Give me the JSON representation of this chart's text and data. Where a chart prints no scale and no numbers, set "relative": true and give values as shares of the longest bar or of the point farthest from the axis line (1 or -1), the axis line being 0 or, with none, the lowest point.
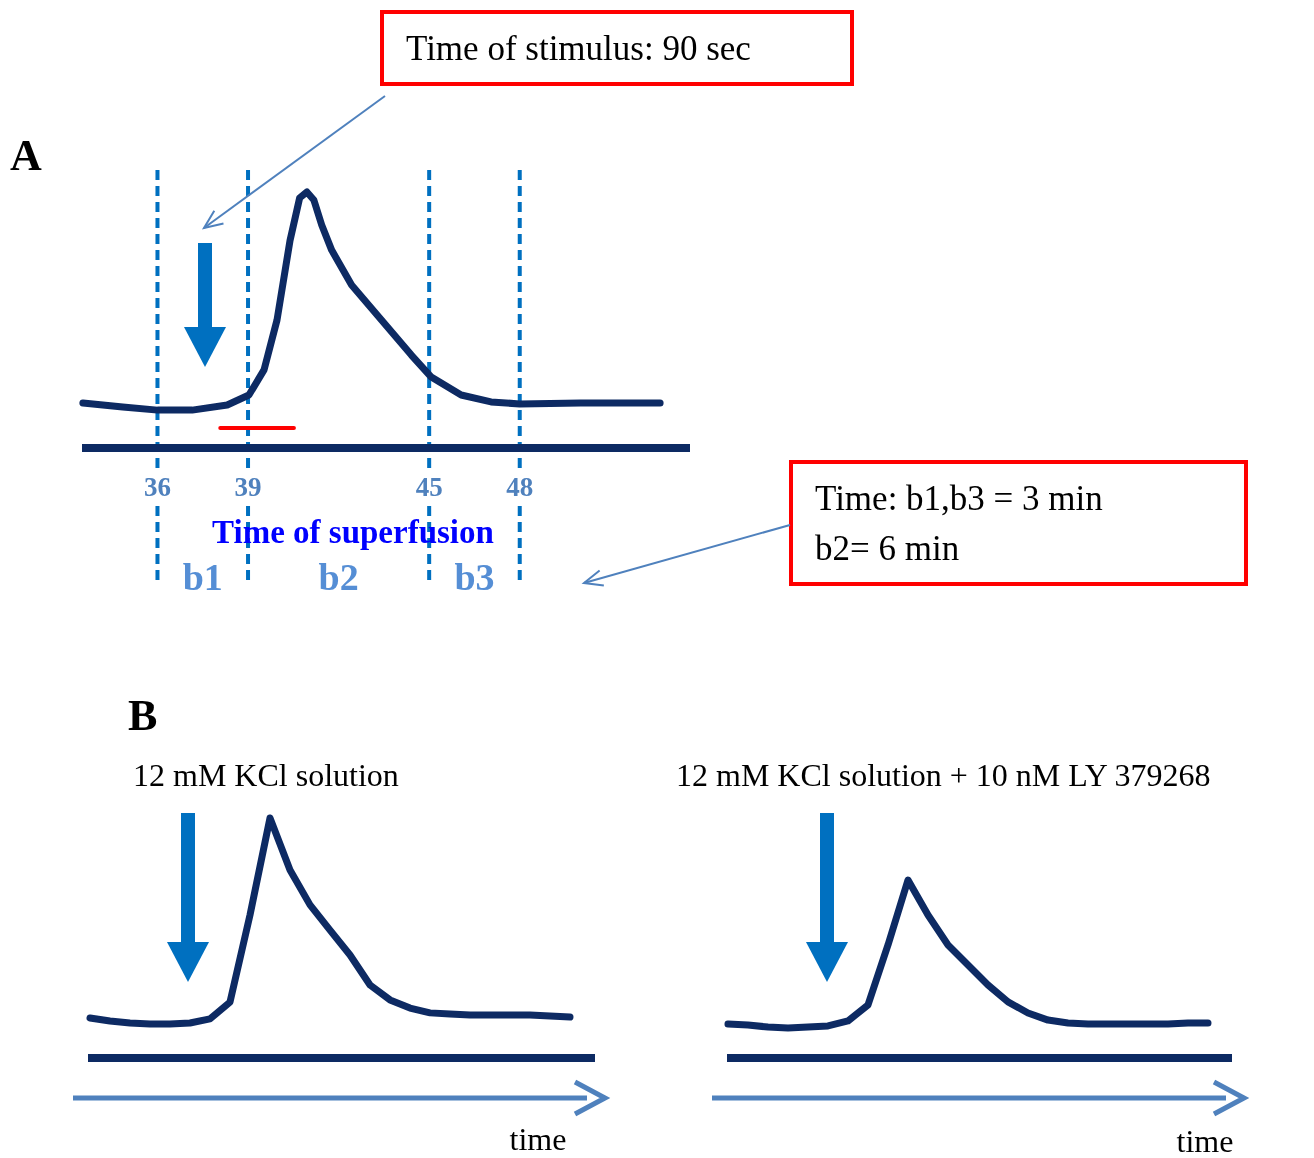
{
  "chart_data": [
    {
      "type": "line",
      "title": "A",
      "xlabel": "Time of superfusion",
      "relative": true,
      "tick_labels": "x",
      "xlim": [
        33.5,
        53.64
      ],
      "xticks": [
        36,
        39,
        45,
        48
      ],
      "x": [
        33.53,
        34.85,
        36,
        37.15,
        38.31,
        39.03,
        39.53,
        39.96,
        40.39,
        40.71,
        40.95,
        41.18,
        41.44,
        41.77,
        42.43,
        43.42,
        44.41,
        45.07,
        46.06,
        47.05,
        48.0,
        50.01,
        52.65
      ],
      "series": [
        {
          "color": "#0d2a63",
          "values": [
            0.176,
            0.16,
            0.148,
            0.148,
            0.168,
            0.207,
            0.305,
            0.5,
            0.81,
            0.977,
            1,
            0.969,
            0.871,
            0.773,
            0.637,
            0.5,
            0.363,
            0.277,
            0.207,
            0.18,
            0.172,
            0.176,
            0.176
          ]
        },
        {
          "color": "#ff0000",
          "x": [
            38.08,
            40.52
          ],
          "values": [
            0.078,
            0.078
          ]
        }
      ],
      "ref_lines": [
        {
          "axis": "x",
          "value": 36,
          "color": "#0070c0",
          "line_style": "dashed"
        },
        {
          "axis": "x",
          "value": 39,
          "color": "#0070c0",
          "line_style": "dashed"
        },
        {
          "axis": "x",
          "value": 45,
          "color": "#0070c0",
          "line_style": "dashed"
        },
        {
          "axis": "x",
          "value": 48,
          "color": "#0070c0",
          "line_style": "dashed"
        }
      ],
      "annotations": [
        "Time of stimulus: 90 sec",
        "Time: b1,b3 = 3 min\nb2= 6 min",
        "b1",
        "b2",
        "b3"
      ]
    },
    {
      "type": "line",
      "title": "B",
      "subtitle": "12 mM KCl solution",
      "xlabel": "time",
      "relative": true,
      "tick_labels": false,
      "categories": [
        null,
        null,
        null,
        null,
        null,
        null,
        null,
        null,
        null,
        null,
        null,
        null,
        null,
        null,
        null,
        null,
        null,
        null,
        null,
        null,
        null,
        null,
        null,
        null,
        null
      ],
      "series": [
        {
          "color": "#0d2a63",
          "values": [
            0.167,
            0.154,
            0.146,
            0.142,
            0.142,
            0.146,
            0.163,
            0.233,
            0.596,
            1,
            0.783,
            0.638,
            0.533,
            0.429,
            0.304,
            0.242,
            0.208,
            0.188,
            0.183,
            0.179,
            0.179,
            0.179,
            0.179,
            0.175,
            0.171
          ]
        }
      ]
    },
    {
      "type": "line",
      "subtitle": "12 mM KCl solution + 10 nM LY 379268",
      "xlabel": "time",
      "relative": true,
      "tick_labels": false,
      "categories": [
        null,
        null,
        null,
        null,
        null,
        null,
        null,
        null,
        null,
        null,
        null,
        null,
        null,
        null,
        null,
        null,
        null,
        null,
        null,
        null,
        null,
        null,
        null,
        null,
        null
      ],
      "series": [
        {
          "color": "#0d2a63",
          "values": [
            0.191,
            0.185,
            0.174,
            0.169,
            0.174,
            0.18,
            0.208,
            0.298,
            0.635,
            1,
            0.803,
            0.635,
            0.522,
            0.41,
            0.315,
            0.253,
            0.213,
            0.197,
            0.191,
            0.191,
            0.191,
            0.191,
            0.191,
            0.197,
            0.197
          ]
        }
      ]
    }
  ]
}
